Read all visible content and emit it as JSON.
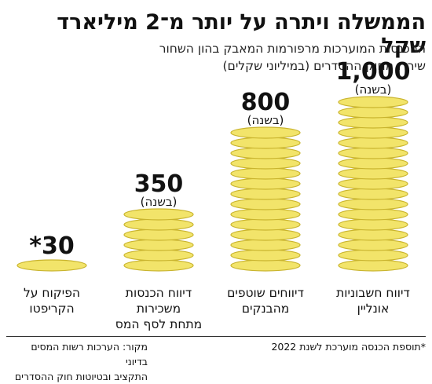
{
  "title": "הממשלה ויתרה על יותר מ־2 מיליארד שקל",
  "subtitle_lines": [
    "ההכנסות המוערכות מרפורמות המאבק בהון השחור",
    "שירדו מחוק ההסדרים (במיליוני שקלים)"
  ],
  "chart_data": {
    "type": "bar",
    "style": "coin-stacks",
    "categories": [
      [
        "דיווח חשבוניות",
        "אונליין"
      ],
      [
        "דיווחים שוטפים",
        "מהבנקים"
      ],
      [
        "דיווח הכנסות",
        "משכירות",
        "מתחת לסף המס"
      ],
      [
        "הפיקוח על",
        "הקריפטו"
      ]
    ],
    "values": [
      1000,
      800,
      350,
      30
    ],
    "value_labels": [
      "1,000",
      "800",
      "350",
      "*30"
    ],
    "per_labels": [
      "(בשנה)",
      "(בשנה)",
      "(בשנה)",
      ""
    ],
    "coin_color": "#f2e46a",
    "coin_edge_color": "#c9b42e"
  },
  "footnote": "*תוספת הכנסה מוערכת לשנת 2022",
  "source_lines": [
    "מקור: הערכות רשות המסים בדיוני",
    "התקציב ובטיוטות חוק ההסדרים"
  ]
}
